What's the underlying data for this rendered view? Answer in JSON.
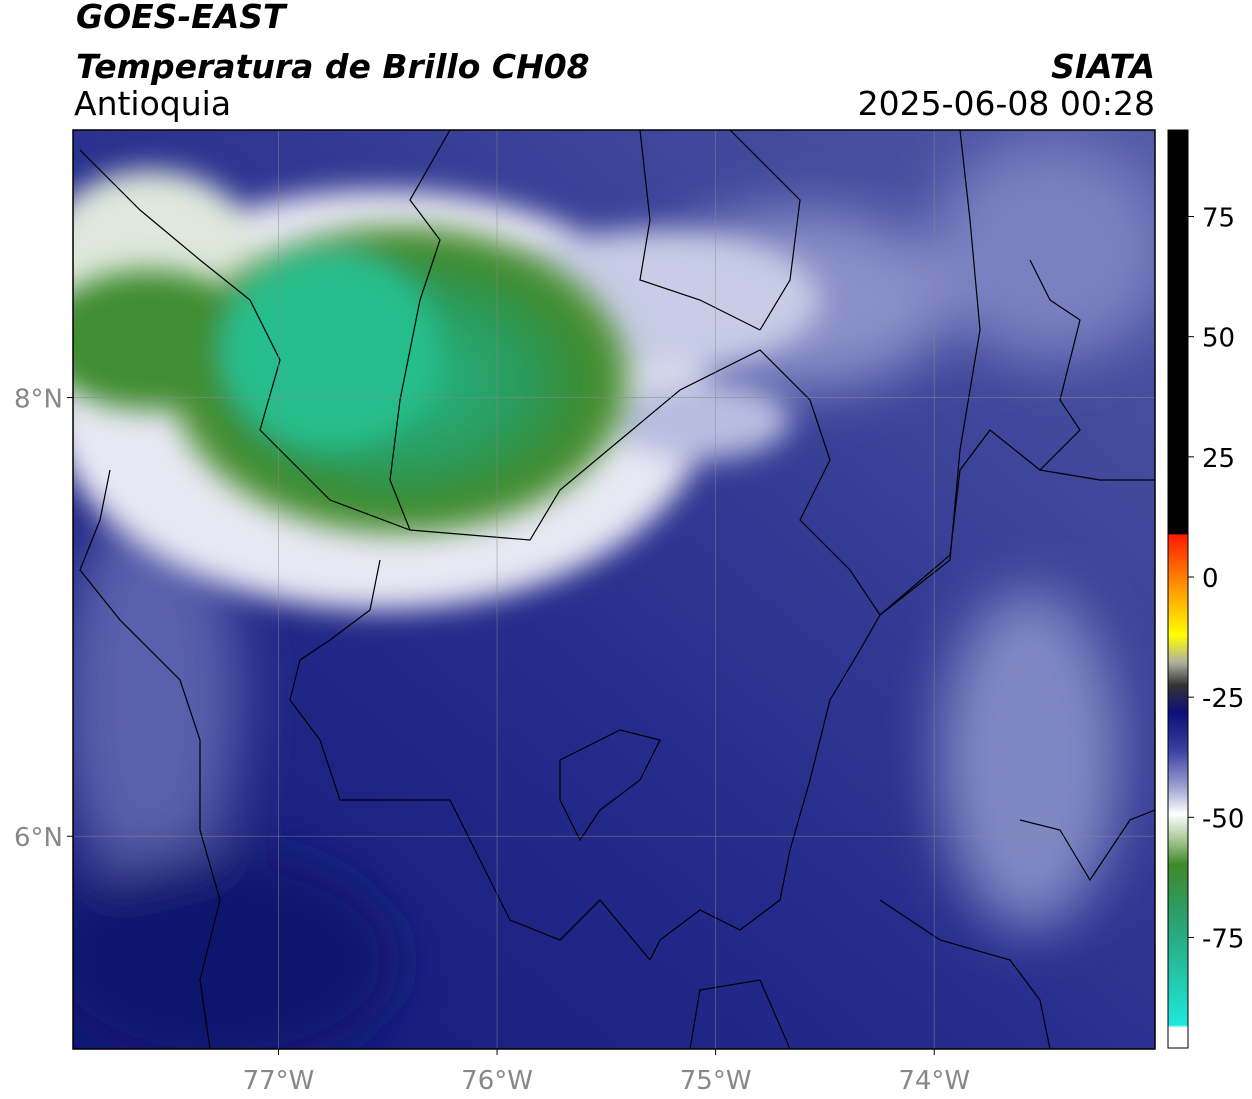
{
  "header": {
    "satellite": "GOES-EAST",
    "title": "Temperatura de Brillo CH08",
    "region": "Antioquia",
    "source": "SIATA",
    "datetime": "2025-06-08 00:28"
  },
  "map": {
    "xlim": [
      -77.94,
      -72.99
    ],
    "ylim": [
      5.03,
      9.22
    ],
    "xticks": [
      {
        "value": -77,
        "label": "77°W"
      },
      {
        "value": -76,
        "label": "76°W"
      },
      {
        "value": -75,
        "label": "75°W"
      },
      {
        "value": -74,
        "label": "74°W"
      }
    ],
    "yticks": [
      {
        "value": 6,
        "label": "6°N"
      },
      {
        "value": 8,
        "label": "8°N"
      }
    ],
    "grid": true
  },
  "colorbar": {
    "lim": [
      -98,
      93
    ],
    "ticks": [
      -75,
      -50,
      -25,
      0,
      25,
      50,
      75
    ]
  }
}
